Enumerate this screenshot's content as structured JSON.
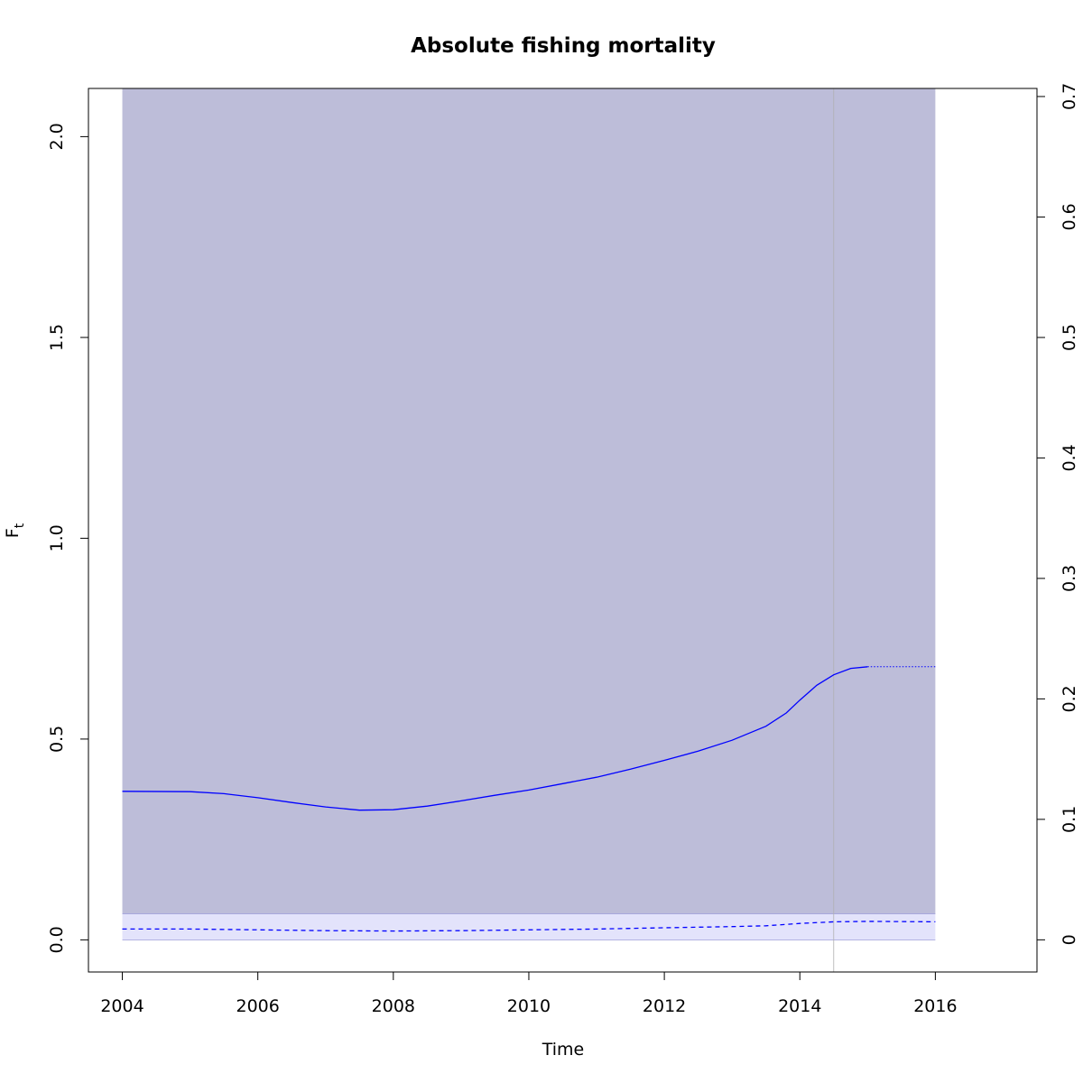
{
  "chart_data": {
    "type": "line",
    "title": "Absolute fishing mortality",
    "xlabel": "Time",
    "ylabel": "F",
    "ylabel_subscript": "t",
    "xlim": [
      2003.5,
      2017.5
    ],
    "ylim": [
      -0.08,
      2.12
    ],
    "y2lim": [
      -0.0267,
      0.7067
    ],
    "xticks": [
      2004,
      2006,
      2008,
      2010,
      2012,
      2014,
      2016
    ],
    "yticks": [
      0.0,
      0.5,
      1.0,
      1.5,
      2.0
    ],
    "ytick_labels": [
      "0.0",
      "0.5",
      "1.0",
      "1.5",
      "2.0"
    ],
    "y2ticks": [
      0,
      0.1,
      0.2,
      0.3,
      0.4,
      0.5,
      0.6,
      0.7
    ],
    "y2tick_labels": [
      "0",
      "0.1",
      "0.2",
      "0.3",
      "0.4",
      "0.5",
      "0.6",
      "0.7"
    ],
    "grid": false,
    "vertical_line_x": 2014.5,
    "band_upper": {
      "x_range": [
        2004,
        2016
      ],
      "y_range": [
        0.065,
        2.12
      ],
      "color": "#bdbdd9"
    },
    "band_lower": {
      "x_range": [
        2004,
        2016
      ],
      "y_range": [
        0.0,
        0.065
      ],
      "color": "#e3e3fb"
    },
    "series": [
      {
        "style": "solid",
        "color": "#0000ff",
        "x": [
          2004.0,
          2005.0,
          2005.5,
          2006.0,
          2006.5,
          2007.0,
          2007.5,
          2008.0,
          2008.5,
          2009.0,
          2009.5,
          2010.0,
          2010.5,
          2011.0,
          2011.5,
          2012.0,
          2012.5,
          2013.0,
          2013.5,
          2013.8,
          2014.0,
          2014.25,
          2014.5,
          2014.75,
          2015.0
        ],
        "y": [
          0.37,
          0.369,
          0.364,
          0.354,
          0.342,
          0.331,
          0.323,
          0.324,
          0.333,
          0.346,
          0.36,
          0.373,
          0.389,
          0.405,
          0.425,
          0.447,
          0.47,
          0.497,
          0.532,
          0.565,
          0.597,
          0.634,
          0.66,
          0.676,
          0.68
        ]
      },
      {
        "style": "dotted",
        "color": "#0000ff",
        "x": [
          2015.0,
          2016.0
        ],
        "y": [
          0.68,
          0.68
        ]
      },
      {
        "style": "dashed",
        "color": "#0000ff",
        "x": [
          2004.0,
          2005.0,
          2006.0,
          2007.0,
          2008.0,
          2009.0,
          2010.0,
          2011.0,
          2012.0,
          2013.0,
          2013.5,
          2014.0,
          2014.5,
          2015.0,
          2016.0
        ],
        "y": [
          0.027,
          0.027,
          0.025,
          0.023,
          0.022,
          0.023,
          0.025,
          0.027,
          0.03,
          0.033,
          0.035,
          0.041,
          0.045,
          0.046,
          0.045
        ]
      }
    ]
  }
}
